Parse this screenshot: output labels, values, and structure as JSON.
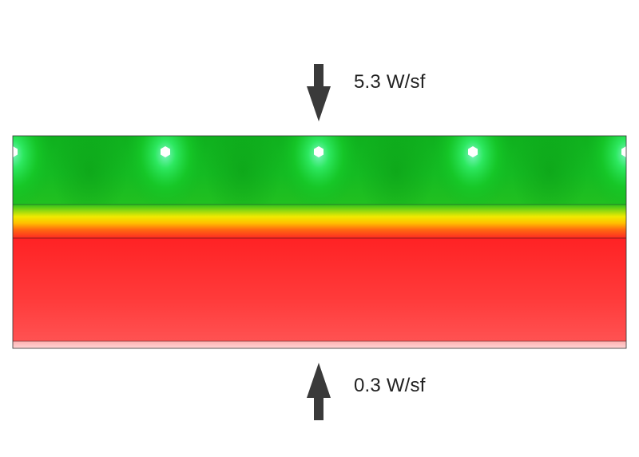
{
  "annotations": {
    "top_flux": "5.3 W/sf",
    "bottom_flux": "0.3 W/sf"
  },
  "colors": {
    "cool_green": "#11bb22",
    "mid_yellow": "#f2e600",
    "hot_red": "#ff2a2a",
    "pipe_cyan": "#40f0c8",
    "arrow": "#3a3a3a"
  },
  "pipes": {
    "count": 5
  }
}
